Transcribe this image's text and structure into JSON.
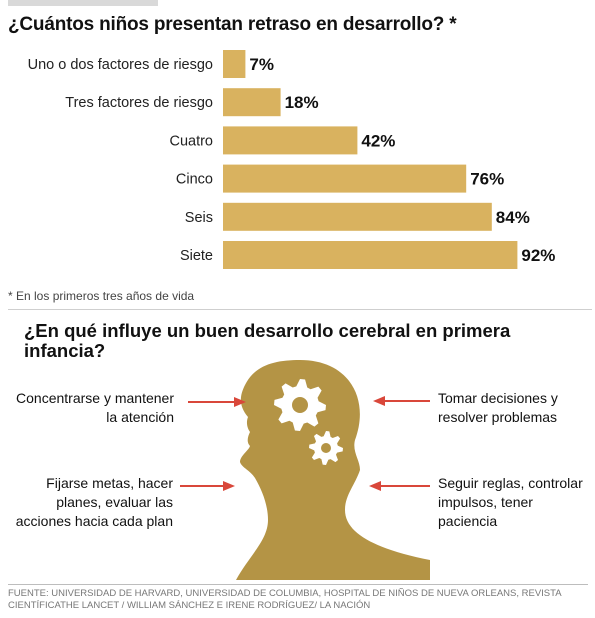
{
  "chart_data": {
    "type": "bar",
    "orientation": "horizontal",
    "title": "¿Cuántos niños presentan retraso en desarrollo? *",
    "categories": [
      "Uno o dos factores de riesgo",
      "Tres factores de riesgo",
      "Cuatro",
      "Cinco",
      "Seis",
      "Siete"
    ],
    "values": [
      7,
      18,
      42,
      76,
      84,
      92
    ],
    "value_labels": [
      "7%",
      "18%",
      "42%",
      "76%",
      "84%",
      "92%"
    ],
    "xlim": [
      0,
      100
    ],
    "grid": false,
    "legend": "none",
    "bar_color": "#d9b25f",
    "footnote": "* En los primeros tres años de vida"
  },
  "infographic": {
    "title": "¿En qué influye un buen desarrollo cerebral en primera infancia?",
    "head_color": "#b49445",
    "arrow_color": "#d9473a",
    "labels": {
      "top_left": "Concentrarse y mantener la atención",
      "bottom_left": "Fijarse metas, hacer planes, evaluar las acciones hacia cada plan",
      "top_right": "Tomar decisiones y resolver problemas",
      "bottom_right": "Seguir reglas, controlar impulsos, tener paciencia"
    }
  },
  "source": "Fuente: Universidad de Harvard, Universidad de Columbia, Hospital de Niños de Nueva Orleans, Revista Científicathe Lancet  /  William Sánchez e Irene Rodríguez/ La Nación"
}
